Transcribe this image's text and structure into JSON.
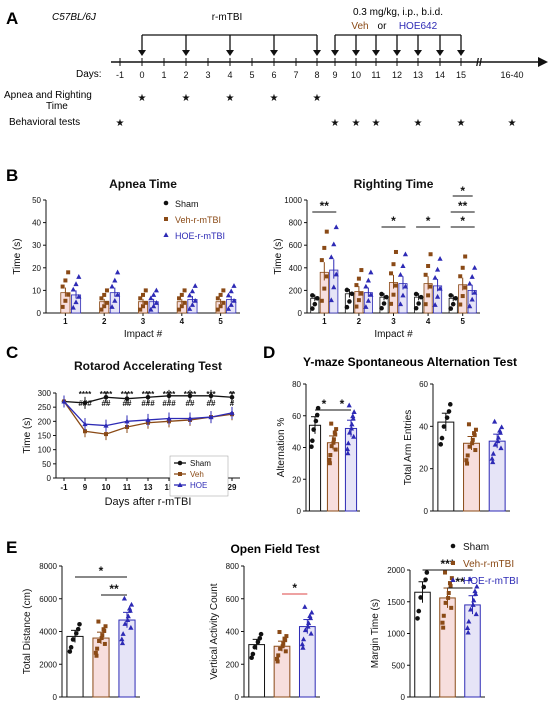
{
  "colors": {
    "sham": "#111111",
    "veh": "#8a4a16",
    "hoe": "#2d2ab5",
    "veh_fill": "#f7dedd",
    "hoe_fill": "#e6e4f7",
    "axis": "#111111"
  },
  "panel_letters": [
    "A",
    "B",
    "C",
    "D",
    "E"
  ],
  "panel_a": {
    "strain": "C57BL/6J",
    "rmtbi_label": "r-mTBI",
    "dose_label": "0.3 mg/kg, i.p., b.i.d.",
    "veh": "Veh",
    "or": "or",
    "drug": "HOE642",
    "days_label": "Days:",
    "days": [
      "-1",
      "0",
      "1",
      "2",
      "3",
      "4",
      "5",
      "6",
      "7",
      "8",
      "9",
      "10",
      "11",
      "12",
      "13",
      "14",
      "15",
      "16-40"
    ],
    "break_symbol": "//",
    "row1_label_line1": "Apnea and Righting",
    "row1_label_line2": "Time",
    "row2_label": "Behavioral tests",
    "star_symbol": "★",
    "apnea_days": [
      "0",
      "2",
      "4",
      "6",
      "8"
    ],
    "behavioral_days": [
      "-1",
      "9",
      "10",
      "11",
      "13",
      "15",
      "16-40"
    ]
  },
  "legends": {
    "groups3": [
      "Sham",
      "Veh-r-mTBI",
      "HOE-r-mTBI"
    ],
    "groups3_short": [
      "Sham",
      "Veh",
      "HOE"
    ]
  },
  "sig": {
    "star": "*",
    "star2": "**",
    "star3": "***",
    "star4": "****",
    "hash": "#",
    "hash2": "##",
    "hash3": "###"
  },
  "chart_data": [
    {
      "id": "apnea",
      "type": "bar",
      "title": "Apnea Time",
      "xlabel": "Impact #",
      "ylabel": "Time (s)",
      "categories": [
        "1",
        "2",
        "3",
        "4",
        "5"
      ],
      "yticks": [
        "0",
        "10",
        "20",
        "30",
        "40",
        "50"
      ],
      "ylim": [
        0,
        50
      ],
      "series": [
        {
          "name": "Sham",
          "values": [
            0,
            0,
            0,
            0,
            0
          ]
        },
        {
          "name": "Veh-r-mTBI",
          "values": [
            9,
            5,
            5,
            5,
            5
          ]
        },
        {
          "name": "HOE-r-mTBI",
          "values": [
            8,
            9,
            5,
            6,
            6
          ]
        }
      ]
    },
    {
      "id": "righting",
      "type": "bar",
      "title": "Righting Time",
      "xlabel": "Impact #",
      "ylabel": "Time (s)",
      "categories": [
        "1",
        "2",
        "3",
        "4",
        "5"
      ],
      "yticks": [
        "0",
        "200",
        "400",
        "600",
        "800",
        "1000"
      ],
      "ylim": [
        0,
        1000
      ],
      "series": [
        {
          "name": "Sham",
          "values": [
            130,
            170,
            140,
            140,
            130
          ]
        },
        {
          "name": "Veh-r-mTBI",
          "values": [
            360,
            190,
            270,
            260,
            250
          ]
        },
        {
          "name": "HOE-r-mTBI",
          "values": [
            380,
            180,
            260,
            240,
            200
          ]
        }
      ],
      "annotations": [
        "**",
        "*",
        "*",
        "*",
        "**"
      ]
    },
    {
      "id": "rotarod",
      "type": "line",
      "title": "Rotarod Accelerating Test",
      "xlabel": "Days after r-mTBI",
      "ylabel": "Time (s)",
      "x": [
        "-1",
        "9",
        "10",
        "11",
        "13",
        "15",
        "18",
        "22",
        "29"
      ],
      "yticks": [
        "0",
        "50",
        "100",
        "150",
        "200",
        "250",
        "300"
      ],
      "ylim": [
        0,
        300
      ],
      "series": [
        {
          "name": "Sham",
          "values": [
            270,
            265,
            285,
            280,
            285,
            290,
            290,
            290,
            285
          ]
        },
        {
          "name": "Veh",
          "values": [
            270,
            165,
            155,
            180,
            195,
            200,
            205,
            215,
            225
          ]
        },
        {
          "name": "HOE",
          "values": [
            270,
            190,
            185,
            200,
            205,
            210,
            210,
            215,
            230
          ]
        }
      ],
      "row_star": [
        "****",
        "****",
        "****",
        "****",
        "****",
        "****",
        "***",
        "**"
      ],
      "row_hash": [
        "###",
        "##",
        "##",
        "###",
        "###",
        "##",
        "##",
        "#"
      ]
    },
    {
      "id": "ymaze_alt",
      "type": "bar",
      "panel_title": "Y-maze Spontaneous Alternation Test",
      "ylabel": "Alternation %",
      "categories": [
        "Sham",
        "Veh-r-mTBI",
        "HOE-r-mTBI"
      ],
      "yticks": [
        "0",
        "20",
        "40",
        "60",
        "80"
      ],
      "ylim": [
        0,
        80
      ],
      "values": [
        54,
        43,
        52
      ]
    },
    {
      "id": "ymaze_arm",
      "type": "bar",
      "ylabel": "Total Arm Entries",
      "categories": [
        "Sham",
        "Veh-r-mTBI",
        "HOE-r-mTBI"
      ],
      "yticks": [
        "0",
        "20",
        "40",
        "60"
      ],
      "ylim": [
        0,
        60
      ],
      "values": [
        42,
        32,
        33
      ]
    },
    {
      "id": "of_distance",
      "type": "bar",
      "panel_title": "Open Field Test",
      "ylabel": "Total Distance (cm)",
      "categories": [
        "Sham",
        "Veh-r-mTBI",
        "HOE-r-mTBI"
      ],
      "yticks": [
        "0",
        "2000",
        "4000",
        "6000",
        "8000"
      ],
      "ylim": [
        0,
        8000
      ],
      "values": [
        3700,
        3600,
        4700
      ]
    },
    {
      "id": "of_vertical",
      "type": "bar",
      "ylabel": "Vertical Activity Count",
      "categories": [
        "Sham",
        "Veh-r-mTBI",
        "HOE-r-mTBI"
      ],
      "yticks": [
        "0",
        "200",
        "400",
        "600",
        "800"
      ],
      "ylim": [
        0,
        800
      ],
      "values": [
        320,
        310,
        430
      ]
    },
    {
      "id": "of_margin",
      "type": "bar",
      "ylabel": "Margin Time (s)",
      "categories": [
        "Sham",
        "Veh-r-mTBI",
        "HOE-r-mTBI"
      ],
      "yticks": [
        "0",
        "500",
        "1000",
        "1500",
        "2000"
      ],
      "ylim": [
        0,
        2000
      ],
      "values": [
        1650,
        1560,
        1450
      ]
    }
  ]
}
